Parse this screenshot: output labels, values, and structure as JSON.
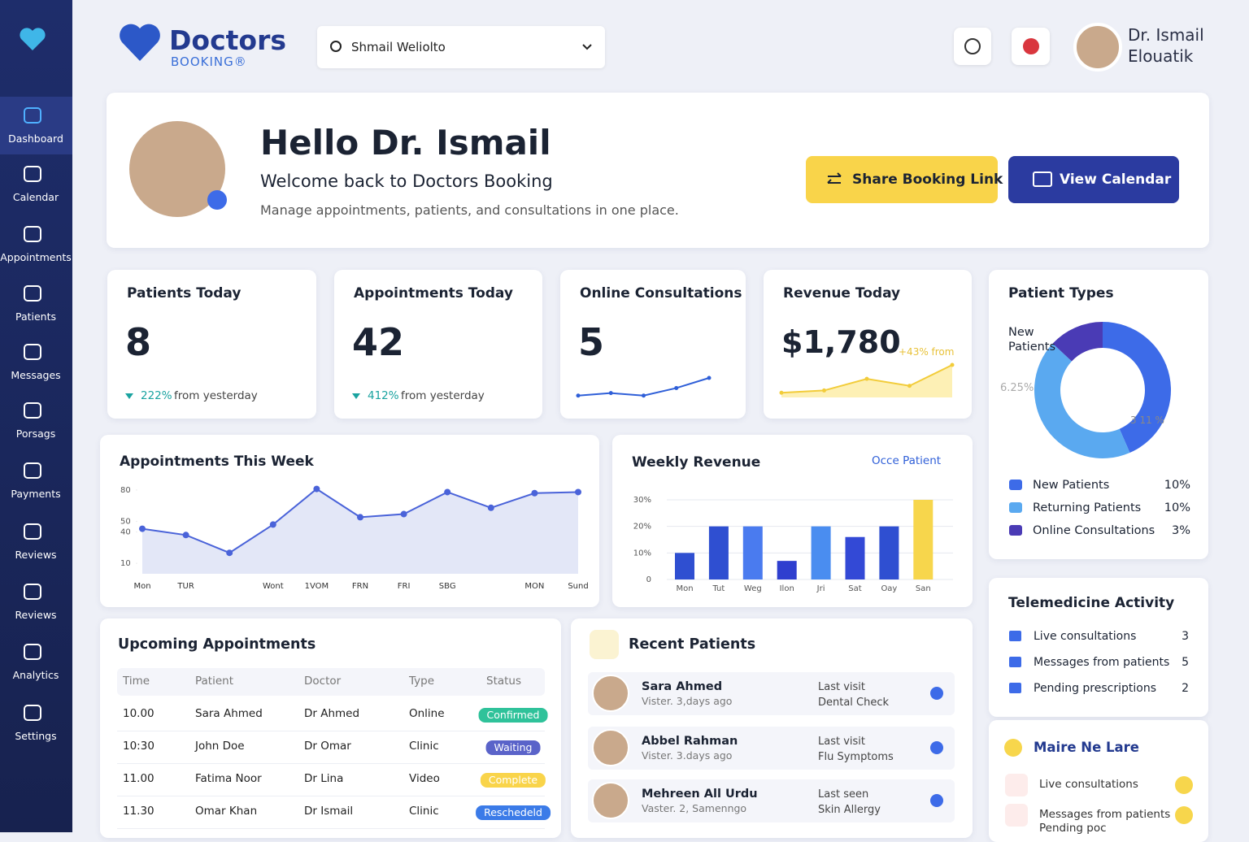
{
  "sidebar": {
    "nav": [
      "Dashboard",
      "Calendar",
      "Appointments",
      "Patients",
      "Messages",
      "Porsags",
      "Payments",
      "Reviews",
      "Reviews",
      "Analytics",
      "Settings"
    ]
  },
  "header": {
    "brand": "Doctors",
    "brand_sub": "BOOKING®",
    "search": "Shmail Weliolto",
    "user": [
      "Dr. Ismail",
      "Elouatik"
    ]
  },
  "hero": {
    "title": "Hello Dr. Ismail",
    "subtitle": "Welcome back to Doctors Booking",
    "text": "Manage appointments, patients, and consultations in one place.",
    "buttons": [
      "Share Booking Link",
      "View Calendar"
    ]
  },
  "stats": [
    {
      "title": "Patients Today",
      "value": 8,
      "change": "222%",
      "change_text": "from yesterday"
    },
    {
      "title": "Appointments Today",
      "value": 42,
      "change": "412%",
      "change_text": "from yesterday"
    },
    {
      "title": "Online Consultations",
      "value": 5,
      "trend": [
        2,
        3,
        2,
        5,
        9
      ]
    },
    {
      "title": "Revenue Today",
      "value": "$1,780",
      "change": "+43% from",
      "trend": [
        2,
        3,
        8,
        5,
        14
      ]
    }
  ],
  "appointments_week": {
    "type": "line",
    "title": "Appointments This Week",
    "categories": [
      "Mon",
      "TUR",
      null,
      "Wont",
      "1VOM",
      "FRN",
      "FRI",
      "SBG",
      null,
      "MON",
      "Sund"
    ],
    "values": [
      43,
      37,
      20,
      47,
      81,
      54,
      57,
      78,
      63,
      77,
      78
    ],
    "ylim": [
      0,
      90
    ],
    "yticks": [
      80,
      50,
      40,
      10
    ],
    "color": "#4a63d9"
  },
  "weekly_revenue": {
    "type": "bar",
    "title": "Weekly Revenue",
    "link": "Occe Patient",
    "categories": [
      "Mon",
      "Tut",
      "Weg",
      "Ilon",
      "Jri",
      "Sat",
      "Oay",
      "San"
    ],
    "values": [
      10,
      20,
      20,
      7,
      20,
      16,
      20,
      30
    ],
    "colors": [
      "#2f4fd1",
      "#2f4fd1",
      "#4a7bef",
      "#2f3fcf",
      "#4a8df0",
      "#3349d6",
      "#2f4fd1",
      "#f7d64c"
    ],
    "ylim": [
      0,
      30
    ],
    "yticks": [
      {
        "value": 30,
        "label": "30%"
      },
      {
        "value": 20,
        "label": "20%"
      },
      {
        "value": 10,
        "label": "10%"
      },
      0
    ],
    "grid": true
  },
  "patient_types": {
    "type": "pie",
    "title": "Patient Types",
    "donut_label": "New Patients",
    "annotations": [
      "6.25%",
      "3 11 %"
    ],
    "series": [
      {
        "name": "New Patients",
        "value": 10,
        "value_label": "10%",
        "color": "#3d6be8"
      },
      {
        "name": "Returning Patients",
        "value": 10,
        "value_label": "10%",
        "color": "#5aa9f0"
      },
      {
        "name": "Online Consultations",
        "value": 3,
        "value_label": "3%",
        "color": "#4a3bb5"
      }
    ]
  },
  "upcoming": {
    "title": "Upcoming Appointments",
    "columns": [
      "Time",
      "Patient",
      "Doctor",
      "Type",
      "Status"
    ],
    "rows": [
      [
        "10.00",
        "Sara Ahmed",
        "Dr Ahmed",
        "Online",
        "Confirmed"
      ],
      [
        "10:30",
        "John Doe",
        "Dr Omar",
        "Clinic",
        "Waiting"
      ],
      [
        "11.00",
        "Fatima Noor",
        "Dr Lina",
        "Video",
        "Complete"
      ],
      [
        "11.30",
        "Omar Khan",
        "Dr Ismail",
        "Clinic",
        "Reschedeld"
      ]
    ]
  },
  "recent": {
    "title": "Recent Patients",
    "patients": [
      {
        "name": "Sara Ahmed",
        "visit": "Vister. 3,days ago",
        "label": "Last visit",
        "detail": "Dental Check"
      },
      {
        "name": "Abbel Rahman",
        "visit": "Vister. 3.days ago",
        "label": "Last visit",
        "detail": "Flu Symptoms"
      },
      {
        "name": "Mehreen All Urdu",
        "visit": "Vaster. 2, Samenngo",
        "label": "Last seen",
        "detail": "Skin Allergy"
      }
    ]
  },
  "telemedicine": {
    "title": "Telemedicine Activity",
    "items": [
      {
        "label": "Live consultations",
        "count": 3
      },
      {
        "label": "Messages from patients",
        "count": 5
      },
      {
        "label": "Pending prescriptions",
        "count": 2
      }
    ]
  },
  "more": {
    "title": "Maire Ne Lare",
    "items": [
      "Live consultations",
      "Messages from patients",
      "Pending poc"
    ]
  }
}
